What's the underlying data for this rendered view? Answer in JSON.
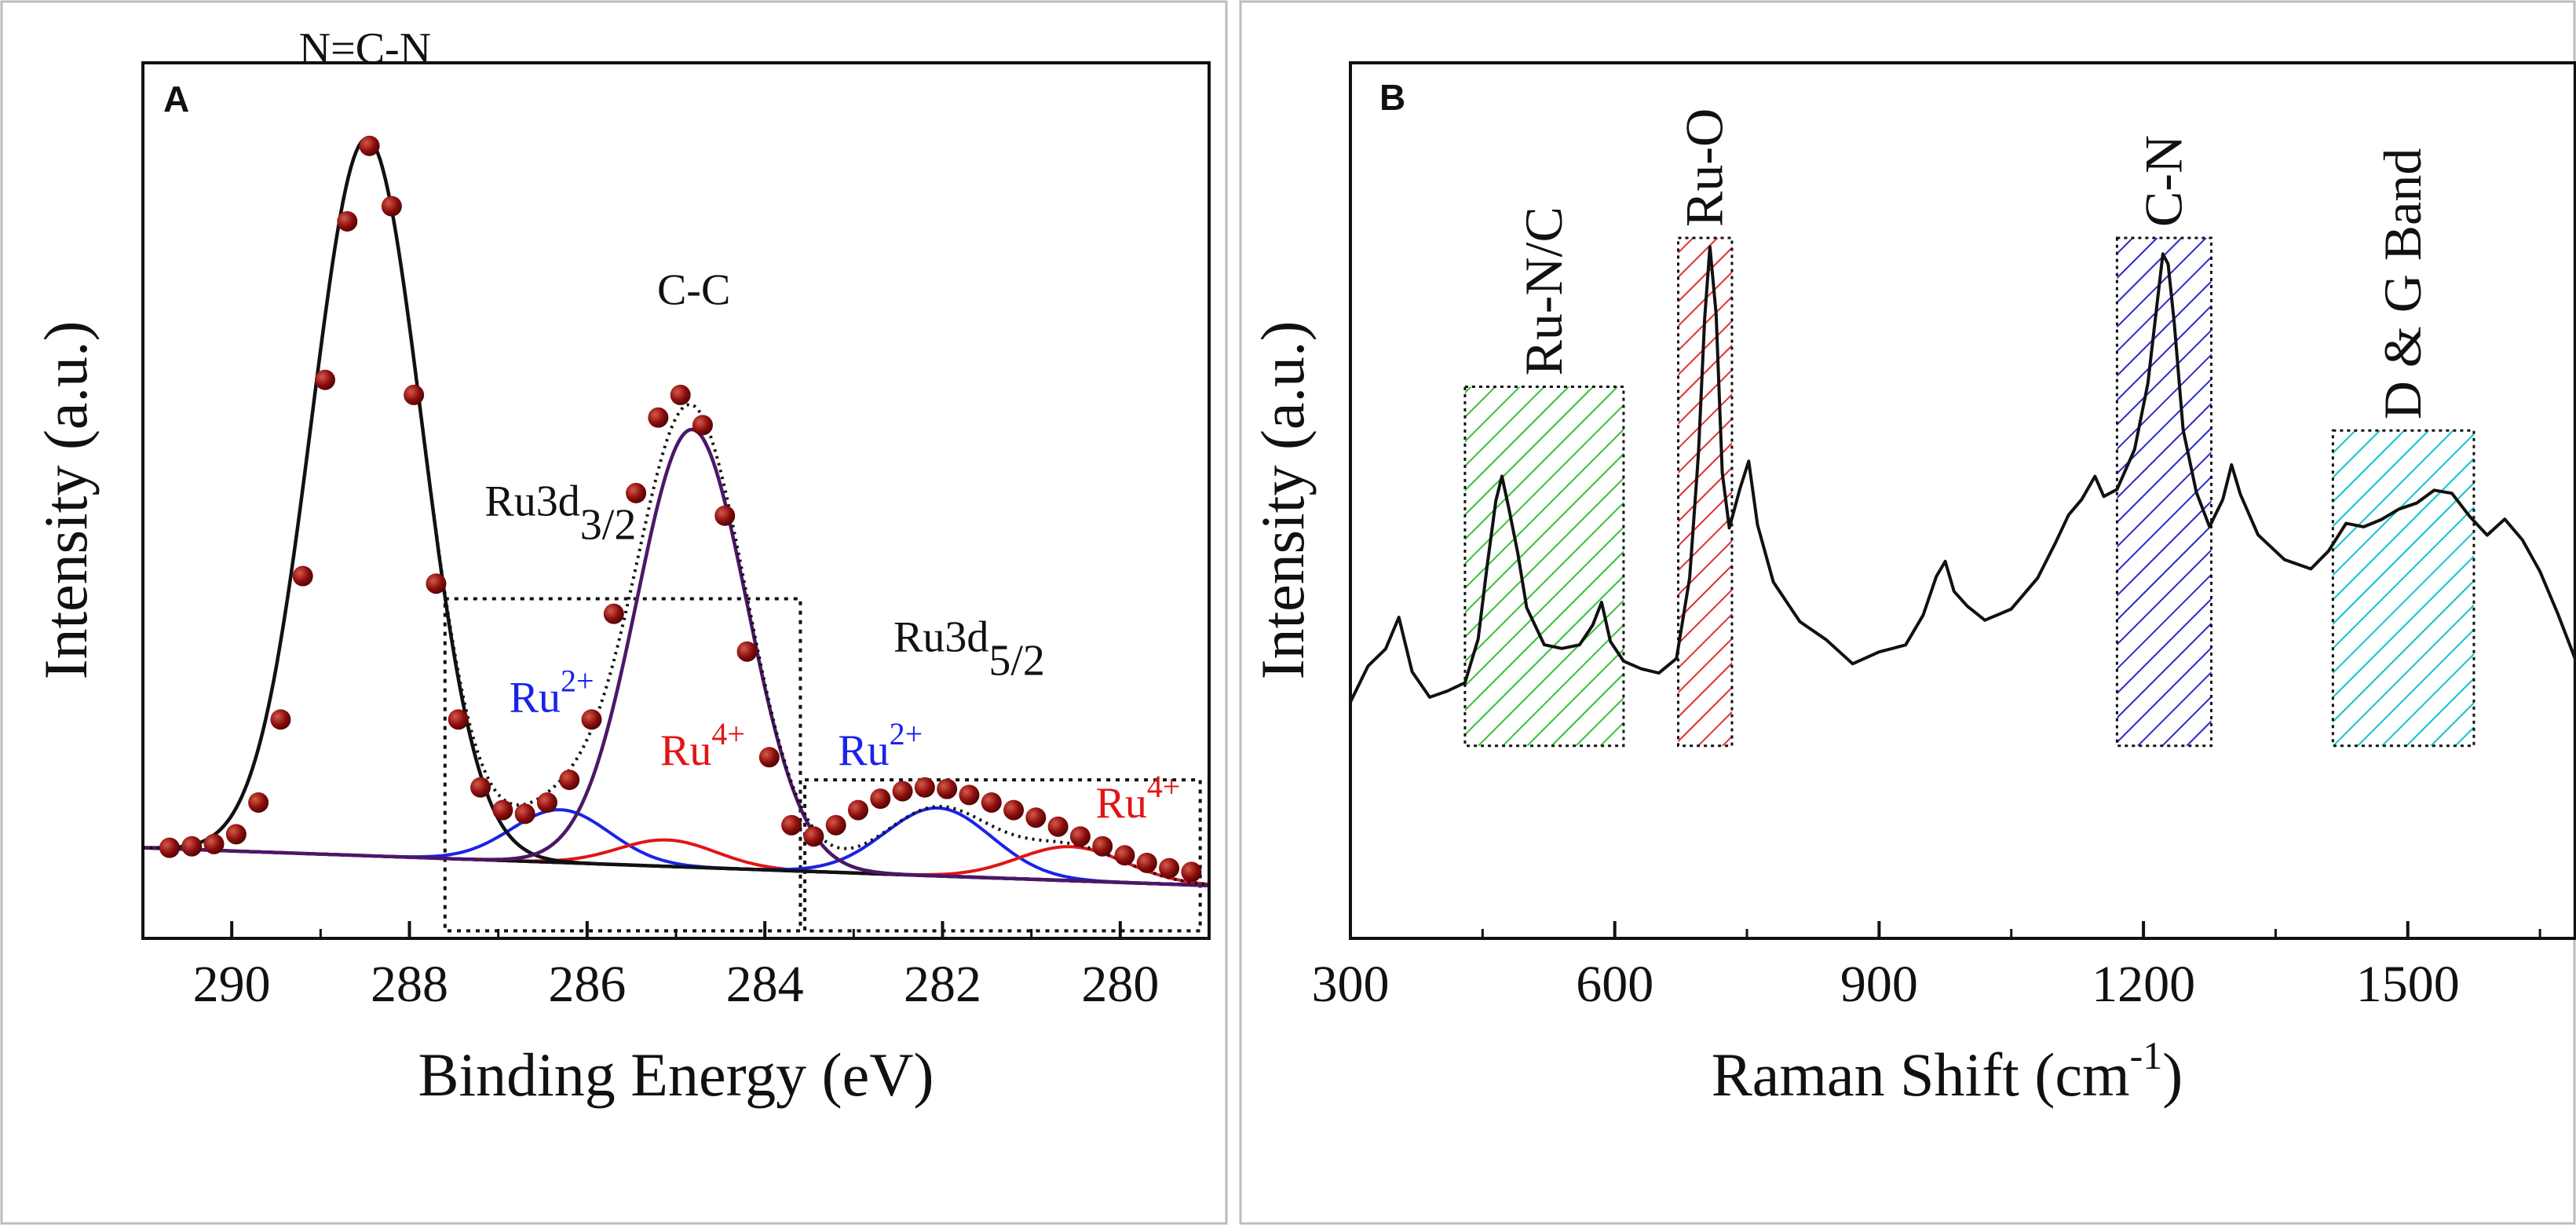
{
  "chart_data": [
    {
      "panel": "A",
      "type": "line",
      "xlabel": "Binding Energy (eV)",
      "ylabel": "Intensity (a.u.)",
      "xlim": [
        291,
        279
      ],
      "ylim": [
        -0.08,
        1.08
      ],
      "xticks": [
        290,
        288,
        286,
        284,
        282,
        280
      ],
      "grid": false,
      "series": [
        {
          "name": "N=C-N",
          "shape": "gaussian",
          "center": 288.48,
          "amplitude": 0.95,
          "sigma": 0.62,
          "color": "#111111"
        },
        {
          "name": "C-C",
          "shape": "gaussian",
          "center": 284.82,
          "amplitude": 0.58,
          "sigma": 0.62,
          "color": "#4b1768"
        },
        {
          "name": "Ru3d3/2 Ru2+",
          "shape": "gaussian",
          "center": 286.3,
          "amplitude": 0.07,
          "sigma": 0.55,
          "color": "#1a23e6"
        },
        {
          "name": "Ru3d3/2 Ru4+",
          "shape": "gaussian",
          "center": 285.1,
          "amplitude": 0.035,
          "sigma": 0.55,
          "color": "#e01515"
        },
        {
          "name": "Ru3d5/2 Ru2+",
          "shape": "gaussian",
          "center": 282.05,
          "amplitude": 0.09,
          "sigma": 0.6,
          "color": "#1a23e6"
        },
        {
          "name": "Ru3d5/2 Ru4+",
          "shape": "gaussian",
          "center": 280.55,
          "amplitude": 0.045,
          "sigma": 0.6,
          "color": "#e01515"
        }
      ],
      "baseline": {
        "start": 0.04,
        "end": -0.01,
        "color": "#111111"
      },
      "experimental_points": {
        "color": "#8b0d0d",
        "x": [
          290.7,
          290.45,
          290.2,
          289.95,
          289.7,
          289.45,
          289.2,
          288.95,
          288.7,
          288.45,
          288.2,
          287.95,
          287.7,
          287.45,
          287.2,
          286.95,
          286.7,
          286.45,
          286.2,
          285.95,
          285.7,
          285.45,
          285.2,
          284.95,
          284.7,
          284.45,
          284.2,
          283.95,
          283.7,
          283.45,
          283.2,
          282.95,
          282.7,
          282.45,
          282.2,
          281.95,
          281.7,
          281.45,
          281.2,
          280.95,
          280.7,
          280.45,
          280.2,
          279.95,
          279.7,
          279.45,
          279.2
        ],
        "y": [
          0.04,
          0.042,
          0.045,
          0.058,
          0.1,
          0.21,
          0.4,
          0.66,
          0.87,
          0.97,
          0.89,
          0.64,
          0.39,
          0.21,
          0.12,
          0.09,
          0.085,
          0.1,
          0.13,
          0.21,
          0.35,
          0.51,
          0.61,
          0.64,
          0.6,
          0.48,
          0.3,
          0.16,
          0.07,
          0.055,
          0.07,
          0.09,
          0.105,
          0.115,
          0.12,
          0.118,
          0.11,
          0.1,
          0.09,
          0.08,
          0.068,
          0.055,
          0.042,
          0.03,
          0.02,
          0.013,
          0.008
        ]
      },
      "annotations": [
        {
          "text": "N=C-N",
          "x": 288.5,
          "y": 1.08
        },
        {
          "text": "C-C",
          "x": 284.8,
          "y": 0.76
        },
        {
          "text": "Ru3d",
          "sub": "3/2",
          "x": 286.3,
          "y": 0.48
        },
        {
          "text": "Ru3d",
          "sub": "5/2",
          "x": 281.7,
          "y": 0.3
        },
        {
          "text": "Ru",
          "sup": "2+",
          "x": 286.4,
          "y": 0.22,
          "color": "#1a23e6"
        },
        {
          "text": "Ru",
          "sup": "4+",
          "x": 284.7,
          "y": 0.15,
          "color": "#e01515"
        },
        {
          "text": "Ru",
          "sup": "2+",
          "x": 282.7,
          "y": 0.15,
          "color": "#1a23e6"
        },
        {
          "text": "Ru",
          "sup": "4+",
          "x": 279.8,
          "y": 0.08,
          "color": "#e01515"
        }
      ],
      "boxes": [
        {
          "x0": 287.6,
          "x1": 283.6,
          "y0": -0.07,
          "y1": 0.37
        },
        {
          "x0": 283.55,
          "x1": 279.1,
          "y0": -0.07,
          "y1": 0.13
        }
      ]
    },
    {
      "panel": "B",
      "type": "line",
      "xlabel": "Raman Shift (cm",
      "xlabel_sup": "-1",
      "xlabel_end": ")",
      "ylabel": "Intensity (a.u.)",
      "xlim": [
        300,
        1690
      ],
      "ylim": [
        0,
        1
      ],
      "xticks": [
        300,
        600,
        900,
        1200,
        1500
      ],
      "grid": false,
      "series": [
        {
          "name": "Raman spectrum",
          "color": "#111111",
          "x": [
            300,
            320,
            340,
            355,
            370,
            390,
            410,
            430,
            445,
            455,
            465,
            472,
            480,
            490,
            500,
            520,
            540,
            560,
            575,
            585,
            595,
            610,
            630,
            650,
            670,
            685,
            695,
            702,
            708,
            715,
            722,
            730,
            742,
            752,
            762,
            780,
            810,
            840,
            870,
            900,
            930,
            950,
            965,
            975,
            985,
            1000,
            1020,
            1050,
            1080,
            1100,
            1115,
            1130,
            1145,
            1155,
            1170,
            1190,
            1205,
            1215,
            1222,
            1228,
            1235,
            1245,
            1260,
            1275,
            1290,
            1300,
            1310,
            1330,
            1360,
            1390,
            1410,
            1430,
            1450,
            1470,
            1490,
            1510,
            1530,
            1550,
            1570,
            1590,
            1610,
            1630,
            1650,
            1670,
            1690
          ],
          "y": [
            0.27,
            0.3,
            0.33,
            0.36,
            0.3,
            0.27,
            0.275,
            0.29,
            0.35,
            0.43,
            0.5,
            0.53,
            0.5,
            0.44,
            0.38,
            0.33,
            0.32,
            0.33,
            0.35,
            0.38,
            0.33,
            0.31,
            0.3,
            0.31,
            0.33,
            0.42,
            0.56,
            0.72,
            0.8,
            0.72,
            0.52,
            0.46,
            0.51,
            0.54,
            0.47,
            0.4,
            0.35,
            0.33,
            0.32,
            0.33,
            0.34,
            0.37,
            0.42,
            0.44,
            0.4,
            0.37,
            0.36,
            0.37,
            0.41,
            0.45,
            0.48,
            0.5,
            0.53,
            0.51,
            0.52,
            0.56,
            0.64,
            0.73,
            0.79,
            0.78,
            0.7,
            0.58,
            0.5,
            0.47,
            0.5,
            0.54,
            0.5,
            0.47,
            0.44,
            0.43,
            0.45,
            0.48,
            0.48,
            0.49,
            0.5,
            0.49,
            0.51,
            0.5,
            0.48,
            0.46,
            0.47,
            0.45,
            0.43,
            0.38,
            0.33
          ]
        }
      ],
      "boxes": [
        {
          "label": "Ru-N/C",
          "x0": 430,
          "x1": 610,
          "y0": 0.22,
          "y1": 0.63,
          "color": "#3ccc3c",
          "hatch": "#36c236"
        },
        {
          "label": "Ru-O",
          "x0": 672,
          "x1": 733,
          "y0": 0.22,
          "y1": 0.8,
          "color": "#e03030",
          "hatch": "#e03030"
        },
        {
          "label": "C-N",
          "x0": 1170,
          "x1": 1277,
          "y0": 0.22,
          "y1": 0.8,
          "color": "#3030c8",
          "hatch": "#2a2acc"
        },
        {
          "label": "D & G Band",
          "x0": 1415,
          "x1": 1575,
          "y0": 0.22,
          "y1": 0.58,
          "color": "#14cfd6",
          "hatch": "#10c5cc"
        }
      ]
    }
  ]
}
